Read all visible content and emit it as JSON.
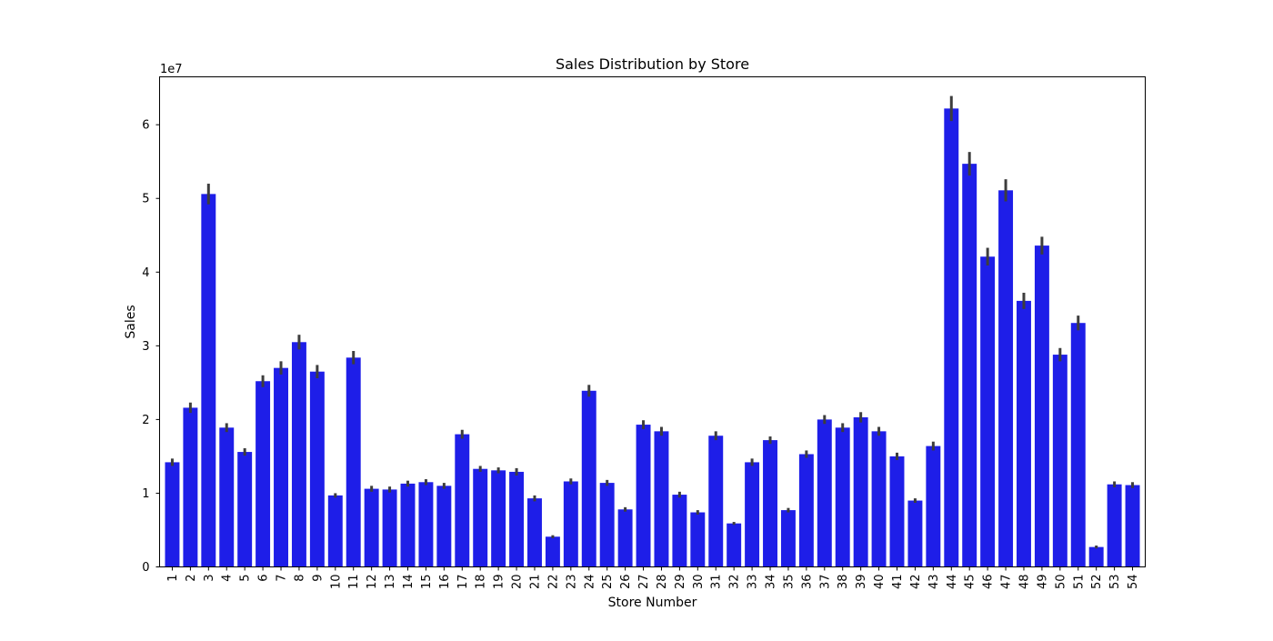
{
  "chart_data": {
    "type": "bar",
    "title": "Sales Distribution by Store",
    "xlabel": "Store Number",
    "ylabel": "Sales",
    "offset_label": "1e7",
    "y_scale_factor": 10000000,
    "ylim": [
      0,
      6.65
    ],
    "yticks": [
      0,
      1,
      2,
      3,
      4,
      5,
      6
    ],
    "ytick_labels": [
      "0",
      "1",
      "2",
      "3",
      "4",
      "5",
      "6"
    ],
    "grid": false,
    "bar_color": "#1e1ee8",
    "errorbar_color": "#3d3d3d",
    "categories": [
      "1",
      "2",
      "3",
      "4",
      "5",
      "6",
      "7",
      "8",
      "9",
      "10",
      "11",
      "12",
      "13",
      "14",
      "15",
      "16",
      "17",
      "18",
      "19",
      "20",
      "21",
      "22",
      "23",
      "24",
      "25",
      "26",
      "27",
      "28",
      "29",
      "30",
      "31",
      "32",
      "33",
      "34",
      "35",
      "36",
      "37",
      "38",
      "39",
      "40",
      "41",
      "42",
      "43",
      "44",
      "45",
      "46",
      "47",
      "48",
      "49",
      "50",
      "51",
      "52",
      "53",
      "54"
    ],
    "values": [
      1.42,
      2.16,
      5.06,
      1.89,
      1.56,
      2.52,
      2.7,
      3.05,
      2.65,
      0.97,
      2.84,
      1.06,
      1.05,
      1.13,
      1.15,
      1.1,
      1.8,
      1.33,
      1.31,
      1.29,
      0.93,
      0.41,
      1.16,
      2.39,
      1.14,
      0.78,
      1.93,
      1.84,
      0.98,
      0.74,
      1.78,
      0.59,
      1.42,
      1.72,
      0.77,
      1.53,
      2.0,
      1.89,
      2.03,
      1.84,
      1.5,
      0.9,
      1.64,
      6.22,
      5.47,
      4.21,
      5.11,
      3.61,
      4.36,
      2.88,
      3.31,
      0.27,
      1.12,
      1.11
    ],
    "errors": [
      0.05,
      0.07,
      0.14,
      0.06,
      0.05,
      0.08,
      0.09,
      0.1,
      0.09,
      0.03,
      0.09,
      0.04,
      0.04,
      0.04,
      0.04,
      0.04,
      0.06,
      0.04,
      0.04,
      0.05,
      0.04,
      0.02,
      0.04,
      0.08,
      0.04,
      0.03,
      0.06,
      0.06,
      0.04,
      0.03,
      0.06,
      0.02,
      0.05,
      0.05,
      0.03,
      0.05,
      0.06,
      0.06,
      0.07,
      0.06,
      0.05,
      0.03,
      0.06,
      0.17,
      0.16,
      0.12,
      0.15,
      0.11,
      0.12,
      0.09,
      0.1,
      0.02,
      0.04,
      0.04
    ]
  }
}
